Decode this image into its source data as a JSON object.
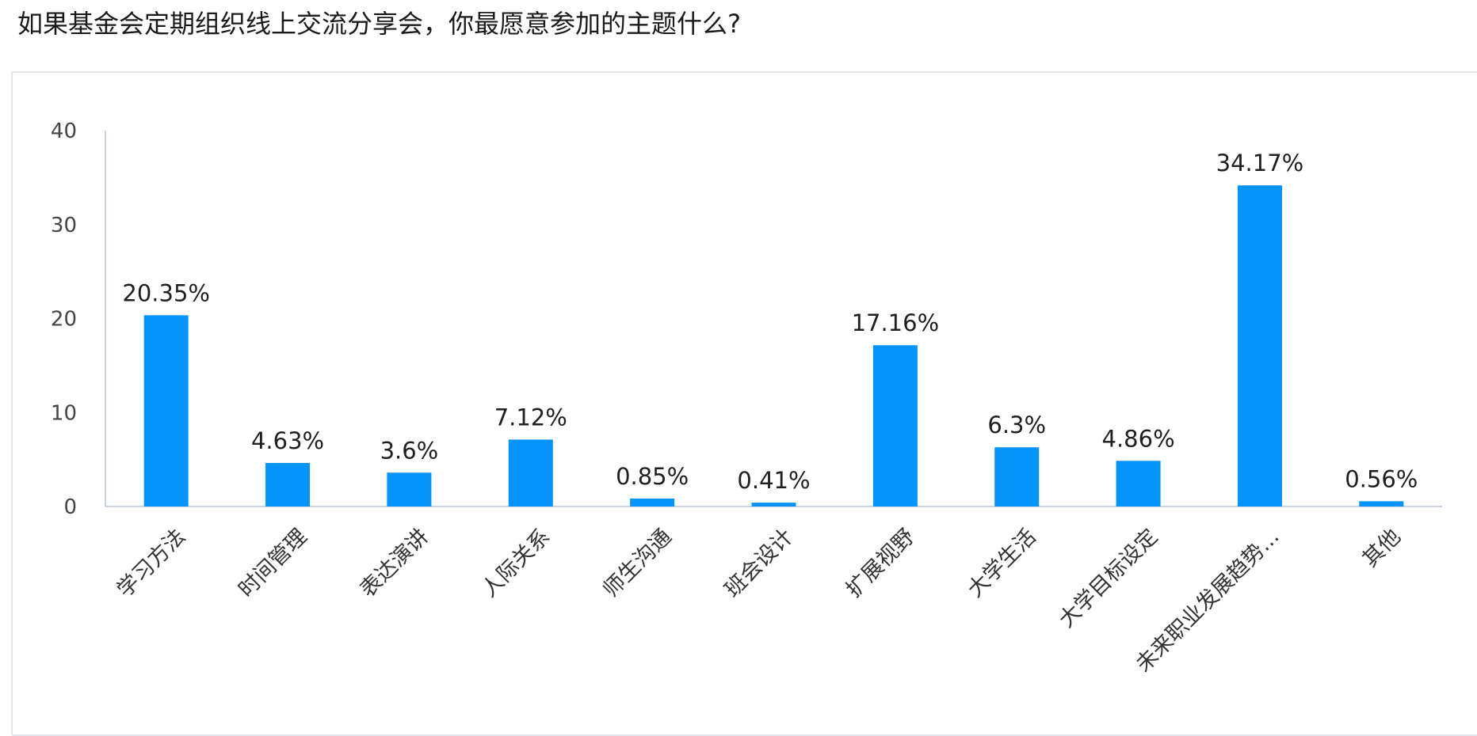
{
  "page": {
    "title": "如果基金会定期组织线上交流分享会，你最愿意参加的主题什么?"
  },
  "colors": {
    "bar": "#0594fb",
    "axis": "#c9d3e0"
  },
  "chart_data": {
    "type": "bar",
    "categories": [
      "学习方法",
      "时间管理",
      "表达演讲",
      "人际关系",
      "师生沟通",
      "班会设计",
      "扩展视野",
      "大学生活",
      "大学目标设定",
      "未来职业发展趋势...",
      "其他"
    ],
    "values": [
      20.35,
      4.63,
      3.6,
      7.12,
      0.85,
      0.41,
      17.16,
      6.3,
      4.86,
      34.17,
      0.56
    ],
    "data_labels": [
      "20.35%",
      "4.63%",
      "3.6%",
      "7.12%",
      "0.85%",
      "0.41%",
      "17.16%",
      "6.3%",
      "4.86%",
      "34.17%",
      "0.56%"
    ],
    "yticks": [
      "0",
      "10",
      "20",
      "30",
      "40"
    ],
    "ylim": [
      0,
      40
    ],
    "title": "",
    "xlabel": "",
    "ylabel": "",
    "grid": false,
    "legend": "none"
  }
}
